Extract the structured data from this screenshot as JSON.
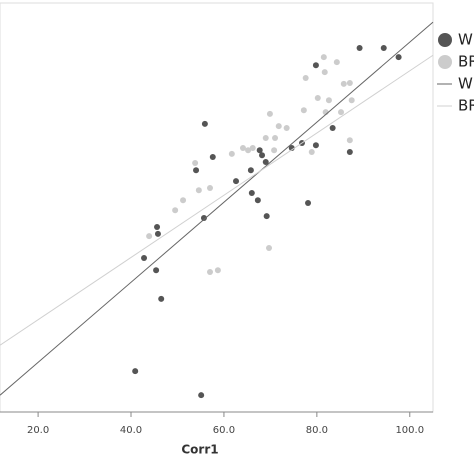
{
  "chart_data": {
    "type": "scatter",
    "x_label": "Corr1",
    "xlim": [
      11.8,
      105
    ],
    "ylim": [
      10,
      100
    ],
    "xticks": [
      {
        "value": 20,
        "label": "20.0"
      },
      {
        "value": 40,
        "label": "40.0"
      },
      {
        "value": 60,
        "label": "60.0"
      },
      {
        "value": 80,
        "label": "80.0"
      },
      {
        "value": 100,
        "label": "100.0"
      }
    ],
    "series": [
      {
        "name": "W",
        "type": "scatter",
        "color": "#555555",
        "x": [
          89.2,
          94.4,
          97.6,
          79.8,
          83.4,
          55.9,
          57.6,
          54.0,
          65.8,
          67.7,
          68.2,
          69.0,
          74.6,
          76.8,
          79.8,
          87.1,
          62.6,
          66.0,
          67.3,
          69.2,
          78.1,
          55.7,
          45.6,
          45.8,
          42.8,
          45.4,
          46.5,
          40.9,
          55.1
        ],
        "values": [
          90.1,
          90.1,
          88.1,
          86.3,
          72.5,
          73.4,
          66.1,
          63.2,
          63.2,
          67.6,
          66.5,
          65.0,
          68.1,
          69.2,
          68.7,
          67.2,
          60.8,
          58.2,
          56.6,
          53.1,
          56.0,
          52.7,
          50.7,
          49.2,
          43.9,
          41.2,
          34.9,
          19.0,
          13.7
        ]
      },
      {
        "name": "BR",
        "type": "scatter",
        "color": "#cccccc",
        "x": [
          81.5,
          81.7,
          84.3,
          77.6,
          85.8,
          87.1,
          80.2,
          82.6,
          87.5,
          81.9,
          85.2,
          69.9,
          71.8,
          73.5,
          69.0,
          71.0,
          64.1,
          65.2,
          66.2,
          61.7,
          70.8,
          78.9,
          87.1,
          53.8,
          54.6,
          57.0,
          49.5,
          51.2,
          43.9,
          58.7,
          57.0,
          69.7,
          77.2
        ],
        "values": [
          88.1,
          84.8,
          87.0,
          83.5,
          82.2,
          82.4,
          79.1,
          78.6,
          78.6,
          76.0,
          76.0,
          75.6,
          72.9,
          72.5,
          70.3,
          70.3,
          68.1,
          67.6,
          68.1,
          66.8,
          67.6,
          67.2,
          69.8,
          64.8,
          58.8,
          59.3,
          54.4,
          56.6,
          48.7,
          41.2,
          40.8,
          46.1,
          76.4
        ]
      },
      {
        "name": "W",
        "type": "line",
        "color": "#666666",
        "x": [
          11.8,
          105
        ],
        "values": [
          13.7,
          95.8
        ]
      },
      {
        "name": "BR",
        "type": "line",
        "color": "#d0d0d0",
        "x": [
          11.8,
          105
        ],
        "values": [
          24.7,
          88.5
        ]
      }
    ]
  }
}
